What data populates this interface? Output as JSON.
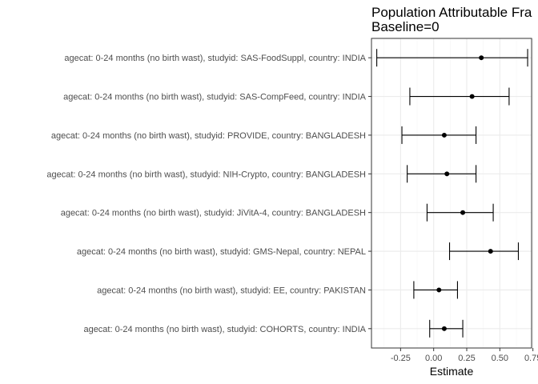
{
  "chart_data": {
    "type": "forest",
    "title_lines": [
      "Population Attributable Fra",
      "Baseline=0"
    ],
    "xlabel": "Estimate",
    "ylabel": "",
    "xlim": [
      -0.47,
      0.74
    ],
    "xticks": [
      -0.25,
      0.0,
      0.25,
      0.5,
      0.75
    ],
    "xtick_labels": [
      "-0.25",
      "0.00",
      "0.25",
      "0.50",
      "0.75"
    ],
    "grid": true,
    "legend": "none",
    "colors": {
      "point": "#000000",
      "grid_major": "#ebebeb",
      "grid_minor": "#f5f5f5",
      "panel_border": "#333333"
    },
    "rows": [
      {
        "label": "agecat: 0-24 months (no birth wast), studyid: SAS-FoodSuppl, country: INDIA",
        "estimate": 0.36,
        "lower": -0.43,
        "upper": 0.71
      },
      {
        "label": "agecat: 0-24 months (no birth wast), studyid: SAS-CompFeed, country: INDIA",
        "estimate": 0.29,
        "lower": -0.18,
        "upper": 0.57
      },
      {
        "label": "agecat: 0-24 months (no birth wast), studyid: PROVIDE, country: BANGLADESH",
        "estimate": 0.08,
        "lower": -0.24,
        "upper": 0.32
      },
      {
        "label": "agecat: 0-24 months (no birth wast), studyid: NIH-Crypto, country: BANGLADESH",
        "estimate": 0.1,
        "lower": -0.2,
        "upper": 0.32
      },
      {
        "label": "agecat: 0-24 months (no birth wast), studyid: JiVitA-4, country: BANGLADESH",
        "estimate": 0.22,
        "lower": -0.05,
        "upper": 0.45
      },
      {
        "label": "agecat: 0-24 months (no birth wast), studyid: GMS-Nepal, country: NEPAL",
        "estimate": 0.43,
        "lower": 0.12,
        "upper": 0.64
      },
      {
        "label": "agecat: 0-24 months (no birth wast), studyid: EE, country: PAKISTAN",
        "estimate": 0.04,
        "lower": -0.15,
        "upper": 0.18
      },
      {
        "label": "agecat: 0-24 months (no birth wast), studyid: COHORTS, country: INDIA",
        "estimate": 0.08,
        "lower": -0.03,
        "upper": 0.22
      }
    ]
  }
}
